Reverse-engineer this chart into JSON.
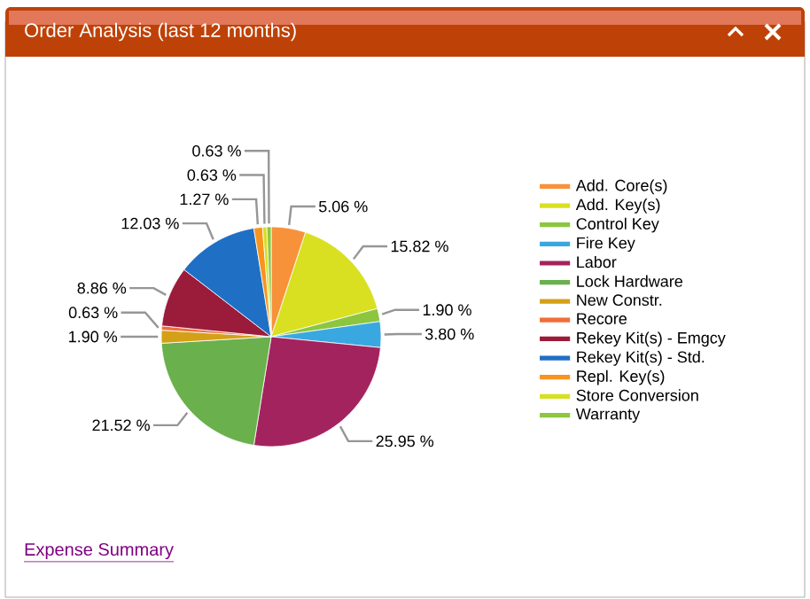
{
  "chart_data": {
    "type": "pie",
    "title": "Order Analysis (last 12 months)",
    "categories": [
      "Add. Core(s)",
      "Add. Key(s)",
      "Control Key",
      "Fire Key",
      "Labor",
      "Lock Hardware",
      "New Constr.",
      "Recore",
      "Rekey Kit(s) - Emgcy",
      "Rekey Kit(s) - Std.",
      "Repl. Key(s)",
      "Store Conversion",
      "Warranty"
    ],
    "values": [
      5.06,
      15.82,
      1.9,
      3.8,
      25.95,
      21.52,
      1.9,
      0.63,
      8.86,
      12.03,
      1.27,
      0.63,
      0.63
    ],
    "value_labels": [
      "5.06 %",
      "15.82 %",
      "1.90 %",
      "3.80 %",
      "25.95 %",
      "21.52 %",
      "1.90 %",
      "0.63 %",
      "8.86 %",
      "12.03 %",
      "1.27 %",
      "0.63 %",
      "0.63 %"
    ],
    "colors": [
      "#f7923a",
      "#d9e021",
      "#8cc63f",
      "#3aa8e0",
      "#a3235f",
      "#6ab04c",
      "#d4a017",
      "#f26c3a",
      "#9b1b3a",
      "#1f6fc5",
      "#f7941d",
      "#d7df23",
      "#8dc63f"
    ],
    "legend": "right",
    "annotations": [
      "Expense Summary"
    ]
  }
}
